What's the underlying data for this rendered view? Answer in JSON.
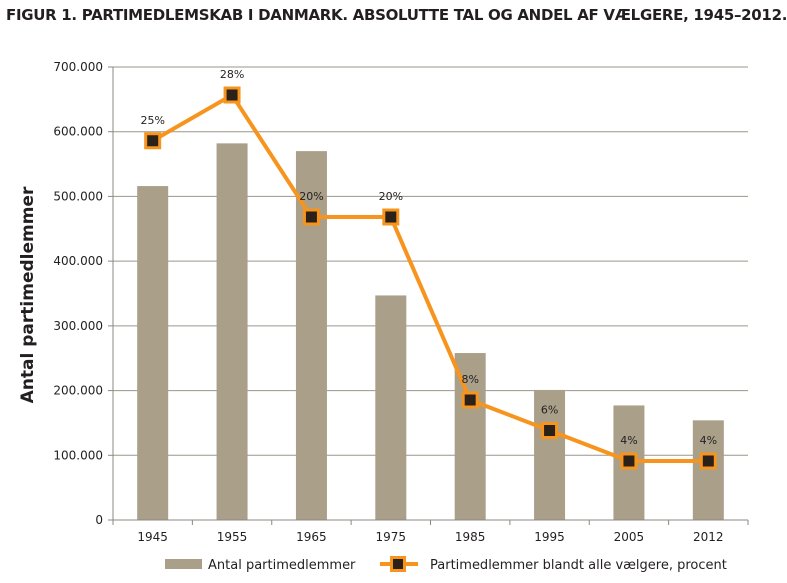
{
  "chart_data": {
    "type": "bar",
    "title": "FIGUR 1. PARTIMEDLEMSKAB I DANMARK. ABSOLUTTE TAL OG ANDEL AF VÆLGERE, 1945–2012.",
    "xlabel": "",
    "ylabel": "Antal partimedlemmer",
    "categories": [
      "1945",
      "1955",
      "1965",
      "1975",
      "1985",
      "1995",
      "2005",
      "2012"
    ],
    "ylim": [
      0,
      700000
    ],
    "yticks": [
      0,
      100000,
      200000,
      300000,
      400000,
      500000,
      600000,
      700000
    ],
    "ytick_labels": [
      "0",
      "100.000",
      "200.000",
      "300.000",
      "400.000",
      "500.000",
      "600.000",
      "700.000"
    ],
    "grid": true,
    "legend_position": "bottom",
    "series": [
      {
        "name": "Antal partimedlemmer",
        "type": "bar",
        "color": "#aa9f88",
        "values": [
          516000,
          582000,
          570000,
          347000,
          258000,
          201000,
          177000,
          154000
        ]
      },
      {
        "name": "Partimedlemmer blandt alle vælgere, procent",
        "type": "line",
        "color": "#f7941d",
        "marker_fill": "#2b2118",
        "values": [
          25,
          28,
          20,
          20,
          8,
          6,
          4,
          4
        ],
        "labels": [
          "25%",
          "28%",
          "20%",
          "20%",
          "8%",
          "6%",
          "4%",
          "4%"
        ]
      }
    ]
  }
}
